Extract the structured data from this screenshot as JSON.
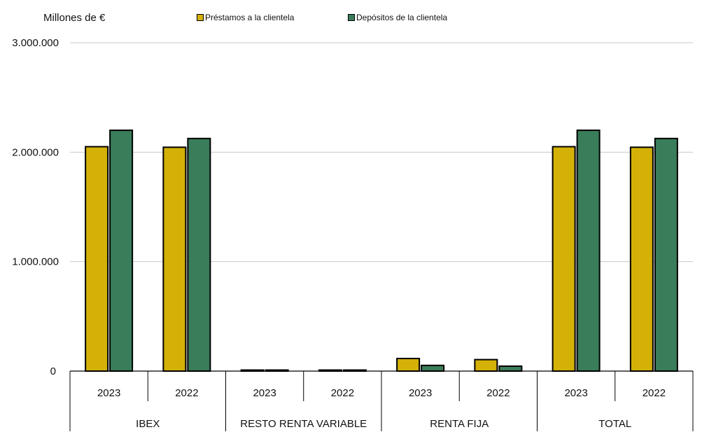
{
  "chart_data": {
    "type": "bar",
    "units_label": "Millones de €",
    "yticks": [
      "3.000.000",
      "2.000.000",
      "1.000.000",
      "0"
    ],
    "ylim": [
      0,
      3000000
    ],
    "grid": true,
    "legend_position": "top",
    "groups": [
      "IBEX",
      "RESTO RENTA VARIABLE",
      "RENTA FIJA",
      "TOTAL"
    ],
    "categories": [
      "2023",
      "2022",
      "2023",
      "2022",
      "2023",
      "2022",
      "2023",
      "2022"
    ],
    "series": [
      {
        "name": "Préstamos a la clientela",
        "color": "#d4b106",
        "values": [
          2050000,
          2045000,
          4000,
          3000,
          115000,
          105000,
          2050000,
          2045000
        ]
      },
      {
        "name": "Depósitos de la clientela",
        "color": "#3a7d5a",
        "values": [
          2200000,
          2125000,
          5000,
          4000,
          52000,
          45000,
          2200000,
          2125000
        ]
      }
    ]
  }
}
